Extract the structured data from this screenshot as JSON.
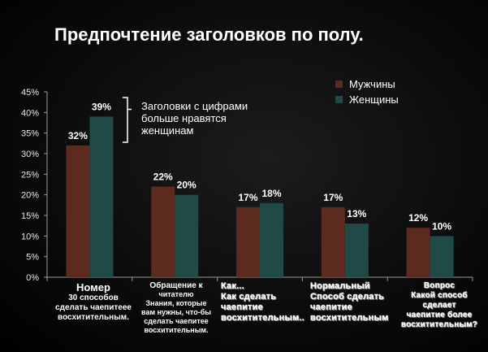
{
  "title": "Предпочтение заголовков по полу.",
  "colors": {
    "men": "#5c2a1f",
    "women": "#1f4a48",
    "axis": "#9a9a9a",
    "text": "#ffffff"
  },
  "annotation": {
    "lines": [
      "Заголовки с цифрами",
      "больше нравятся",
      "женщинам"
    ]
  },
  "chart_data": {
    "type": "bar",
    "title": "Предпочтение заголовков по полу.",
    "ylim": [
      0,
      45
    ],
    "yticks": [
      "0%",
      "5%",
      "10%",
      "15%",
      "20%",
      "25%",
      "30%",
      "35%",
      "40%",
      "45%"
    ],
    "legend": {
      "position": "top-right",
      "entries": [
        "Мужчины",
        "Женщины"
      ]
    },
    "categories": [
      {
        "title": "Номер",
        "lines": [
          "30 способов",
          "сделать чаепитеее",
          "восхитительным."
        ]
      },
      {
        "title": "Обращение к",
        "lines": [
          "читателю",
          "Знания, которые",
          "вам нужны, что-бы",
          "сделать чаепитее",
          "восхитительным."
        ]
      },
      {
        "title": "Как...",
        "lines": [
          "Как сделать",
          "чаепитие",
          "восхитительным.."
        ]
      },
      {
        "title": "Нормальный",
        "lines": [
          "Способ сделать",
          "чаепитие",
          "восхитительным"
        ]
      },
      {
        "title": "Вопрос",
        "lines": [
          "Какой способ",
          "сделает",
          "чаепитие более",
          "восхитительным?"
        ]
      }
    ],
    "series": [
      {
        "name": "Мужчины",
        "values": [
          32,
          22,
          17,
          17,
          12
        ],
        "labels": [
          "32%",
          "22%",
          "17%",
          "17%",
          "12%"
        ]
      },
      {
        "name": "Женщины",
        "values": [
          39,
          20,
          18,
          13,
          10
        ],
        "labels": [
          "39%",
          "20%",
          "18%",
          "13%",
          "10%"
        ]
      }
    ]
  }
}
